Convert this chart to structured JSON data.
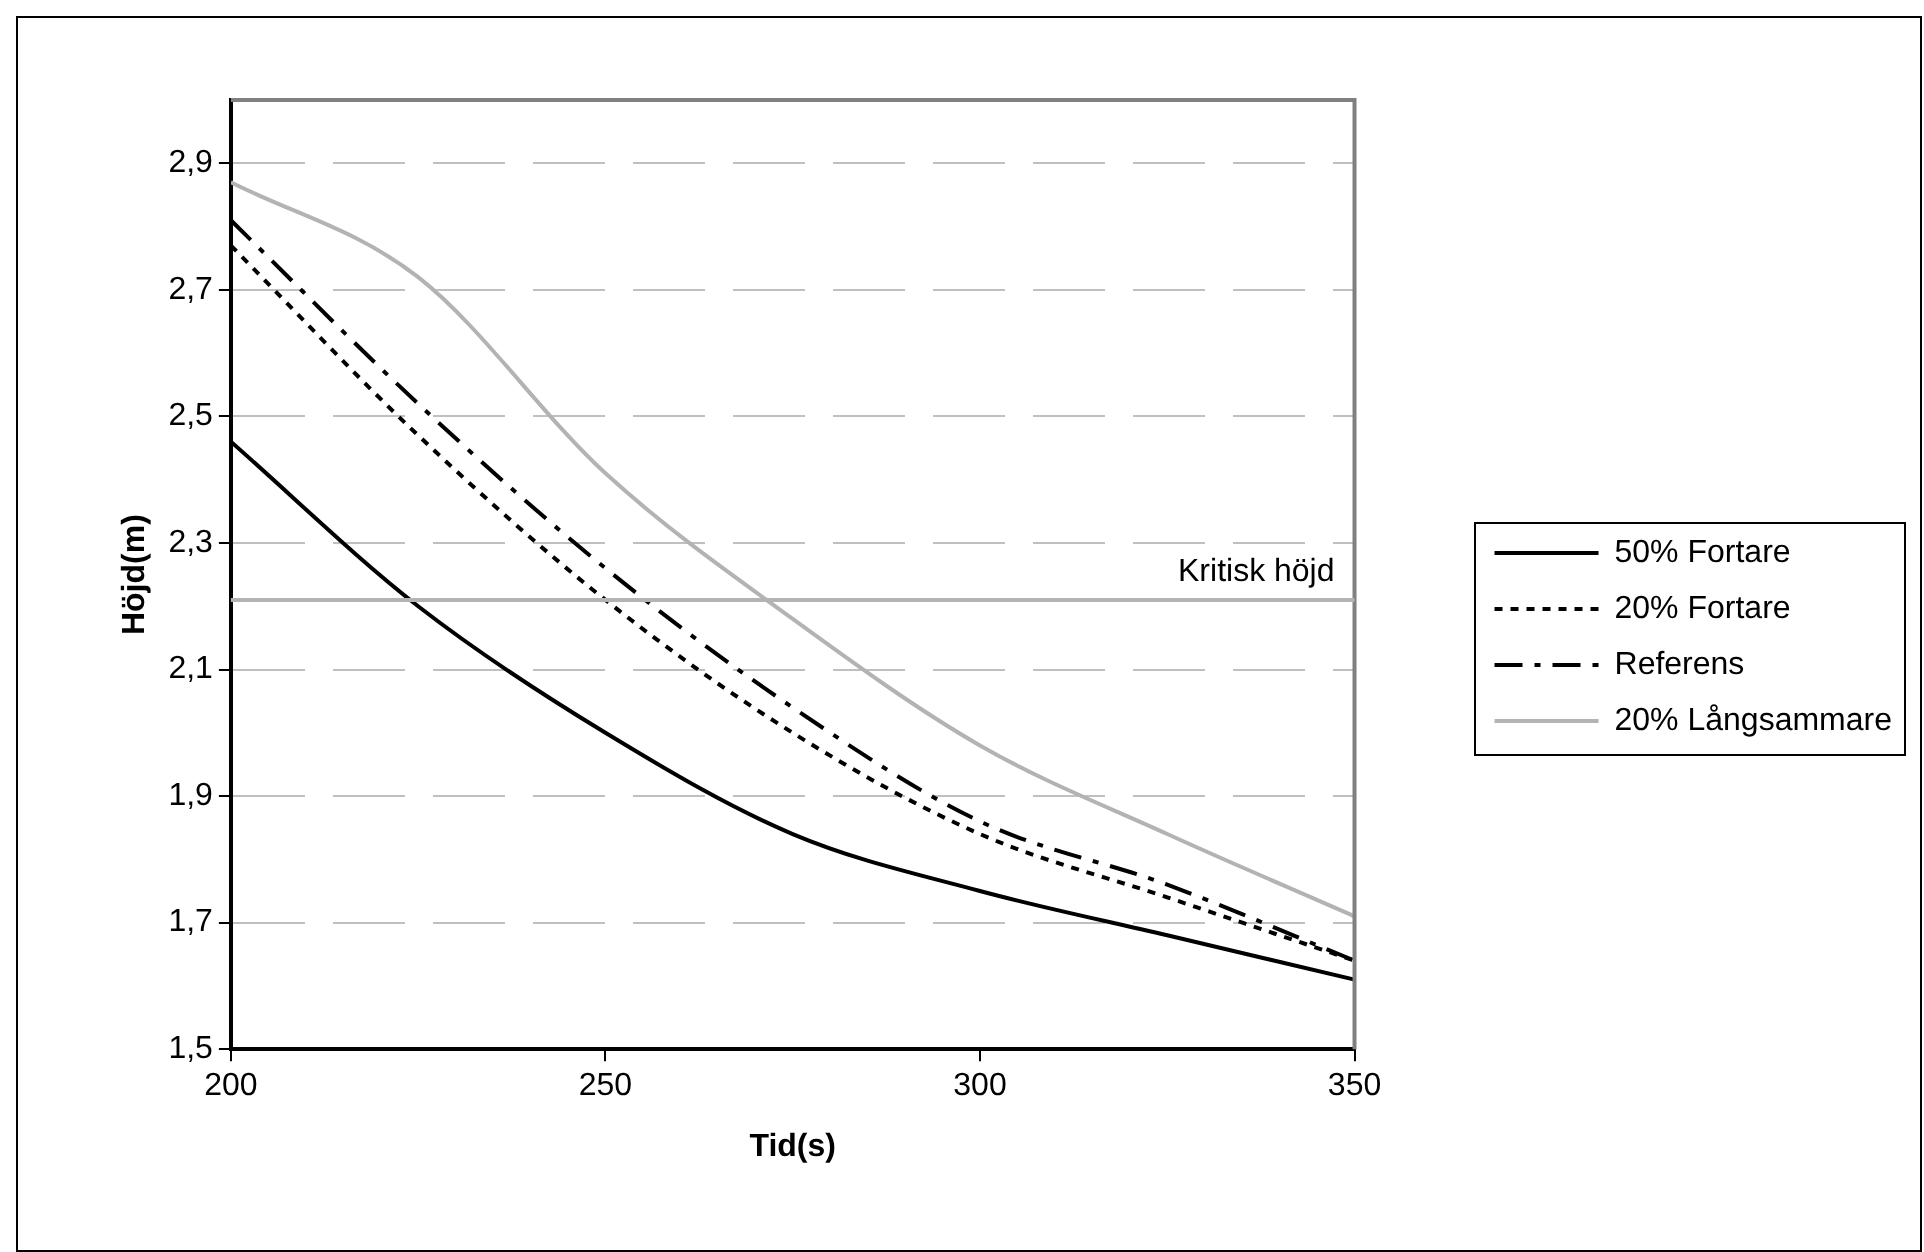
{
  "chart_data": {
    "type": "line",
    "xlabel": "Tid(s)",
    "ylabel": "Höjd(m)",
    "x": [
      200,
      225,
      250,
      275,
      300,
      325,
      350
    ],
    "series": [
      {
        "name": "50% Fortare",
        "color": "#000000",
        "line_style": "solid",
        "values": [
          2.46,
          2.2,
          2.0,
          1.84,
          1.75,
          1.68,
          1.61
        ]
      },
      {
        "name": "20% Fortare",
        "color": "#000000",
        "line_style": "dotted",
        "values": [
          2.77,
          2.47,
          2.21,
          2.0,
          1.84,
          1.74,
          1.64
        ]
      },
      {
        "name": "Referens",
        "color": "#000000",
        "line_style": "dashdot",
        "values": [
          2.81,
          2.52,
          2.26,
          2.04,
          1.86,
          1.76,
          1.64
        ]
      },
      {
        "name": "20% Långsammare",
        "color": "#b3b3b3",
        "line_style": "solid",
        "values": [
          2.87,
          2.72,
          2.41,
          2.18,
          1.98,
          1.84,
          1.71
        ]
      }
    ],
    "xlim": [
      200,
      350
    ],
    "xticks": [
      200,
      250,
      300,
      350
    ],
    "ylim": [
      1.5,
      3.0
    ],
    "yticks": [
      {
        "value": 1.5,
        "label": "1,5"
      },
      {
        "value": 1.7,
        "label": "1,7"
      },
      {
        "value": 1.9,
        "label": "1,9"
      },
      {
        "value": 2.1,
        "label": "2,1"
      },
      {
        "value": 2.3,
        "label": "2,3"
      },
      {
        "value": 2.5,
        "label": "2,5"
      },
      {
        "value": 2.7,
        "label": "2,7"
      },
      {
        "value": 2.9,
        "label": "2,9"
      }
    ],
    "ref_lines": [
      {
        "axis": "y",
        "value": 2.21,
        "label": "Kritisk höjd",
        "color": "#b3b3b3"
      }
    ],
    "grid": "y",
    "legend": "right",
    "marker": "none"
  }
}
